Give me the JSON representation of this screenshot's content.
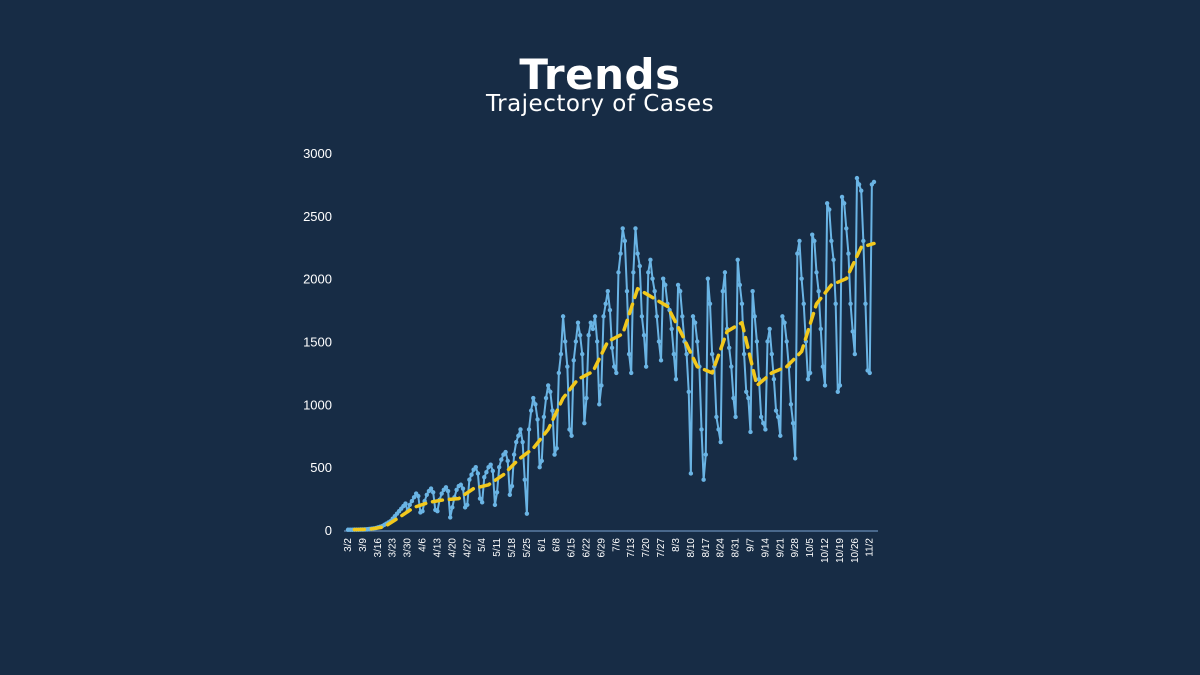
{
  "header": {
    "title": "Trends",
    "subtitle": "Trajectory of Cases"
  },
  "colors": {
    "background": "#172c45",
    "daily_line": "#6ab4e4",
    "average_line": "#f2c81c",
    "axis": "#5a7da3",
    "text": "#ffffff"
  },
  "chart_data": {
    "type": "line",
    "title": "Trends",
    "subtitle": "Trajectory of Cases",
    "xlabel": "",
    "ylabel": "",
    "ylim": [
      0,
      3000
    ],
    "yticks": [
      0,
      500,
      1000,
      1500,
      2000,
      2500,
      3000
    ],
    "grid": false,
    "legend": "none",
    "xtick_labels": [
      "3/2",
      "3/9",
      "3/16",
      "3/23",
      "3/30",
      "4/6",
      "4/13",
      "4/20",
      "4/27",
      "5/4",
      "5/11",
      "5/18",
      "5/25",
      "6/1",
      "6/8",
      "6/15",
      "6/22",
      "6/29",
      "7/6",
      "7/13",
      "7/20",
      "7/27",
      "8/3",
      "8/10",
      "8/17",
      "8/24",
      "8/31",
      "9/7",
      "9/14",
      "9/21",
      "9/28",
      "10/5",
      "10/12",
      "10/19",
      "10/26",
      "11/2"
    ],
    "series": [
      {
        "style": "solid-with-markers",
        "week_values": [
          [
            2,
            2,
            2,
            3,
            3,
            3,
            4
          ],
          [
            4,
            5,
            6,
            8,
            10,
            12,
            15
          ],
          [
            20,
            25,
            30,
            40,
            50,
            60,
            70
          ],
          [
            90,
            110,
            130,
            150,
            170,
            190,
            210
          ],
          [
            150,
            200,
            230,
            260,
            290,
            270,
            140
          ],
          [
            150,
            230,
            280,
            310,
            330,
            300,
            160
          ],
          [
            150,
            240,
            290,
            320,
            340,
            310,
            100
          ],
          [
            180,
            260,
            320,
            350,
            360,
            330,
            180
          ],
          [
            200,
            400,
            440,
            480,
            500,
            450,
            250
          ],
          [
            220,
            420,
            460,
            500,
            520,
            470,
            200
          ],
          [
            300,
            500,
            560,
            600,
            620,
            550,
            280
          ],
          [
            350,
            600,
            700,
            750,
            800,
            700,
            400
          ],
          [
            130,
            800,
            950,
            1050,
            1000,
            880,
            500
          ],
          [
            550,
            900,
            1050,
            1150,
            1100,
            950,
            600
          ],
          [
            650,
            1250,
            1400,
            1700,
            1500,
            1300,
            800
          ],
          [
            750,
            1350,
            1500,
            1650,
            1550,
            1400,
            850
          ],
          [
            1050,
            1550,
            1650,
            1600,
            1700,
            1500,
            1000
          ],
          [
            1150,
            1700,
            1800,
            1900,
            1750,
            1450,
            1300
          ],
          [
            1250,
            2050,
            2200,
            2400,
            2300,
            1900,
            1400
          ],
          [
            1250,
            2050,
            2400,
            2200,
            2100,
            1700,
            1550
          ],
          [
            1300,
            2050,
            2150,
            2000,
            1900,
            1700,
            1500
          ],
          [
            1350,
            2000,
            1950,
            1800,
            1750,
            1600,
            1400
          ],
          [
            1200,
            1950,
            1900,
            1700,
            1500,
            1400,
            1100
          ],
          [
            450,
            1700,
            1650,
            1500,
            1300,
            800,
            400
          ],
          [
            600,
            2000,
            1800,
            1400,
            1300,
            900,
            800
          ],
          [
            700,
            1900,
            2050,
            1600,
            1450,
            1300,
            1050
          ],
          [
            900,
            2150,
            1950,
            1800,
            1400,
            1100,
            1050
          ],
          [
            780,
            1900,
            1700,
            1500,
            1200,
            900,
            850
          ],
          [
            800,
            1500,
            1600,
            1400,
            1200,
            950,
            900
          ],
          [
            750,
            1700,
            1650,
            1500,
            1300,
            1000,
            850
          ],
          [
            570,
            2200,
            2300,
            2000,
            1800,
            1500,
            1200
          ],
          [
            1250,
            2350,
            2300,
            2050,
            1900,
            1600,
            1300
          ],
          [
            1150,
            2600,
            2550,
            2300,
            2150,
            1800,
            1100
          ],
          [
            1150,
            2650,
            2600,
            2400,
            2200,
            1800,
            1580
          ],
          [
            1400,
            2800,
            2750,
            2700,
            2300,
            1800,
            1270
          ],
          [
            1250,
            2750,
            2770
          ]
        ]
      },
      {
        "style": "dashed",
        "weekly_avg": [
          3,
          6,
          25,
          100,
          180,
          220,
          240,
          250,
          330,
          360,
          440,
          560,
          650,
          800,
          1050,
          1200,
          1260,
          1500,
          1560,
          1920,
          1850,
          1780,
          1550,
          1300,
          1250,
          1580,
          1650,
          1150,
          1250,
          1300,
          1420,
          1800,
          1950,
          2000,
          2250,
          2280
        ]
      }
    ]
  }
}
